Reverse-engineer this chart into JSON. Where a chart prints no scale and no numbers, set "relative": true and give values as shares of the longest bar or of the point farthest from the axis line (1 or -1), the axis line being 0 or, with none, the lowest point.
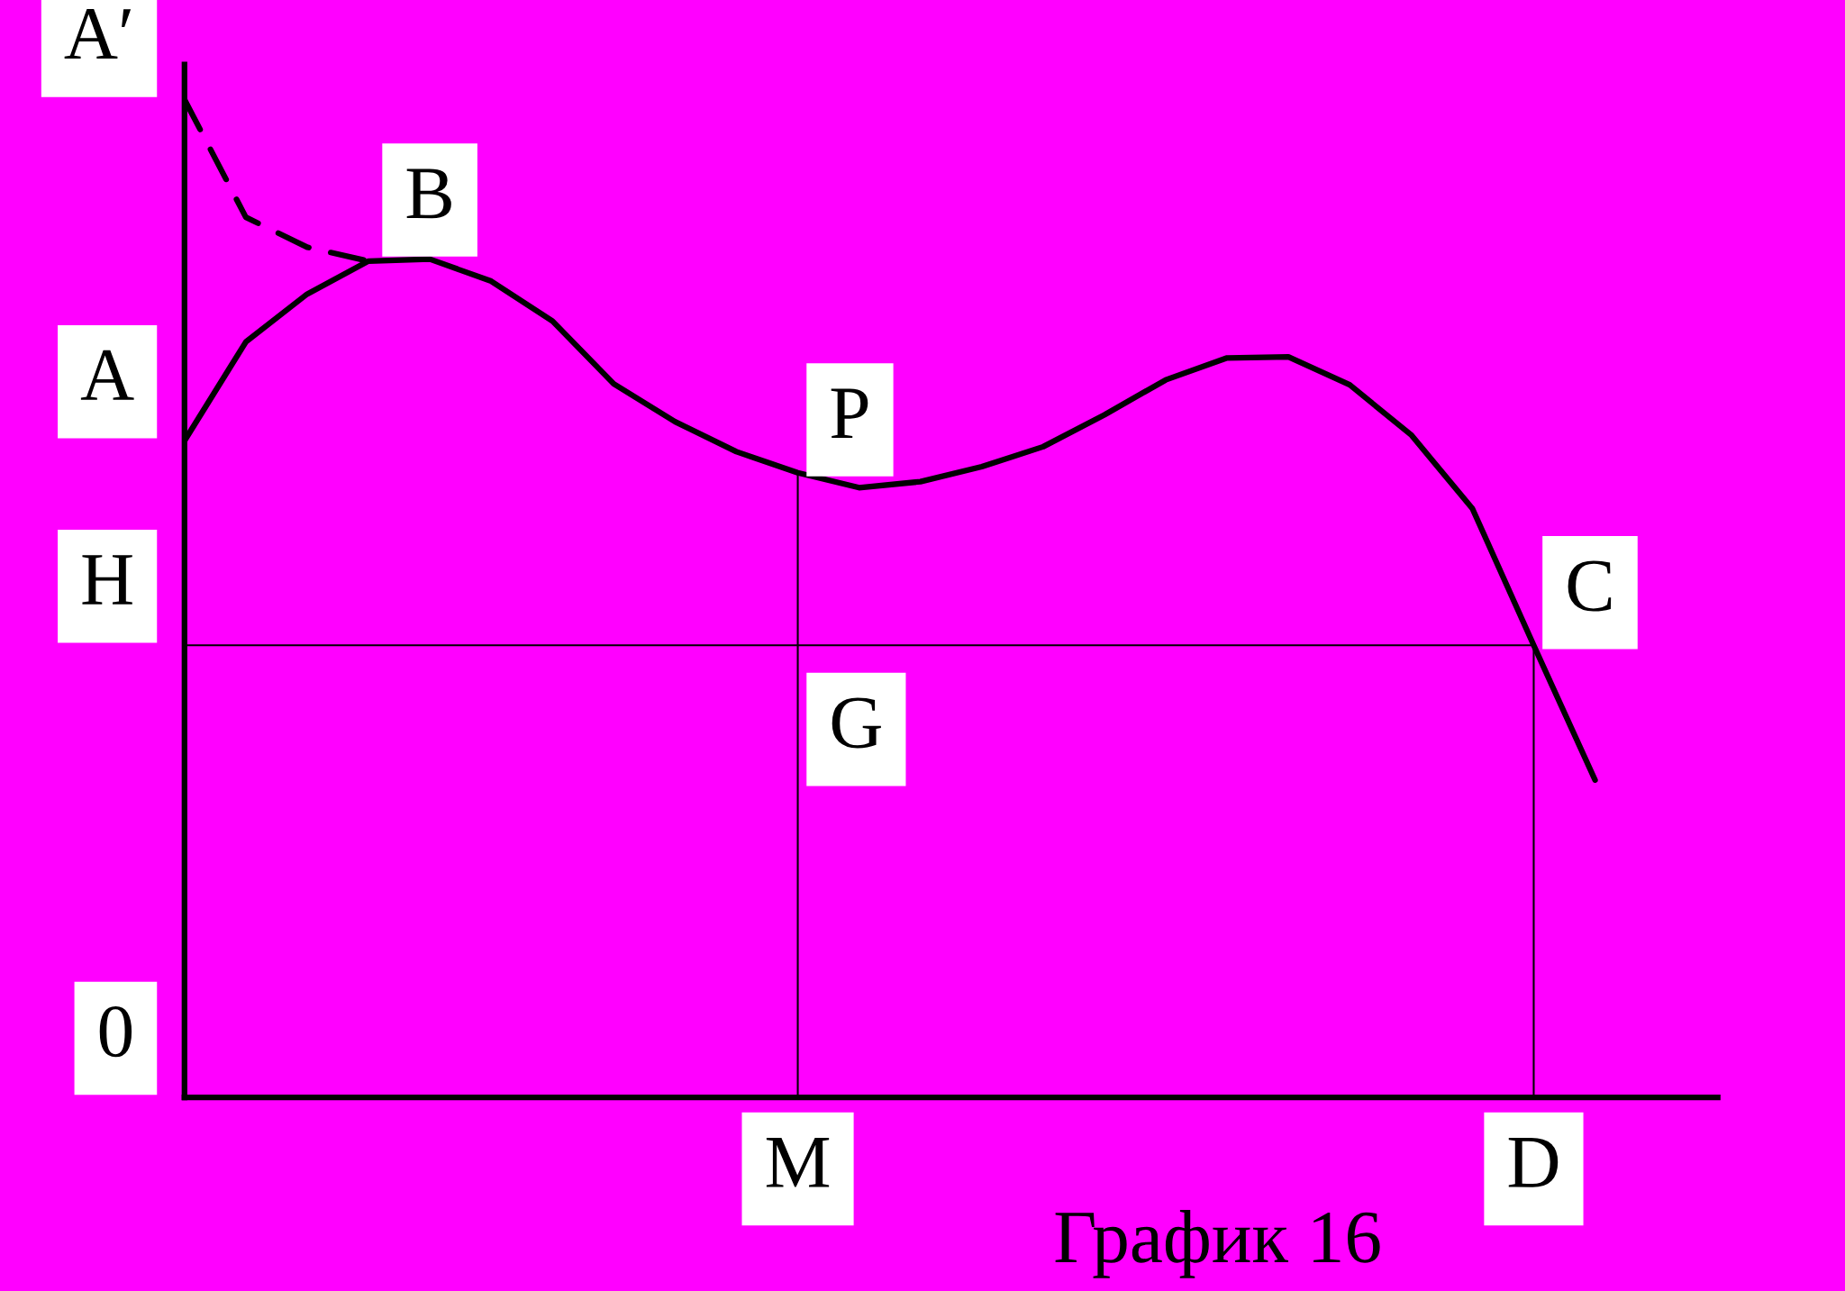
{
  "chart_data": {
    "type": "line",
    "relative": true,
    "categories": [
      null,
      null,
      null,
      null,
      null,
      null,
      null,
      null,
      null,
      null,
      "M",
      null,
      null,
      null,
      null,
      null,
      null,
      null,
      null,
      null,
      null,
      null,
      "D",
      null
    ],
    "series": [
      {
        "color": "#000000",
        "line_style": "solid",
        "values": [
          0.658,
          0.757,
          0.805,
          0.838,
          0.84,
          0.818,
          0.778,
          0.715,
          0.677,
          0.647,
          0.626,
          0.611,
          0.617,
          0.632,
          0.652,
          0.684,
          0.719,
          0.741,
          0.742,
          0.714,
          0.664,
          0.59,
          0.453,
          0.318
        ]
      },
      {
        "color": "#000000",
        "line_style": "dashed",
        "values": [
          1.0,
          0.882,
          0.852,
          0.838,
          null,
          null,
          null,
          null,
          null,
          null,
          null,
          null,
          null,
          null,
          null,
          null,
          null,
          null,
          null,
          null,
          null,
          null,
          null,
          null
        ]
      },
      {
        "color": "#000000",
        "line_style": "solid",
        "values": [
          0.453,
          0.453,
          0.453,
          0.453,
          0.453,
          0.453,
          0.453,
          0.453,
          0.453,
          0.453,
          0.453,
          0.453,
          0.453,
          0.453,
          0.453,
          0.453,
          0.453,
          0.453,
          0.453,
          0.453,
          0.453,
          0.453,
          0.453,
          null
        ]
      }
    ],
    "ref_lines": [
      {
        "axis": "x",
        "value": "M"
      },
      {
        "axis": "x",
        "value": "D"
      }
    ],
    "annotations": [
      "A′",
      "A",
      "H",
      "0",
      {
        "text": "B",
        "y": 0.84
      },
      {
        "text": "P",
        "x": "M",
        "y": 0.626
      },
      {
        "text": "G",
        "x": "M",
        "y": 0.453
      },
      {
        "text": "C",
        "x": "D",
        "y": 0.453
      },
      "График 16"
    ]
  }
}
